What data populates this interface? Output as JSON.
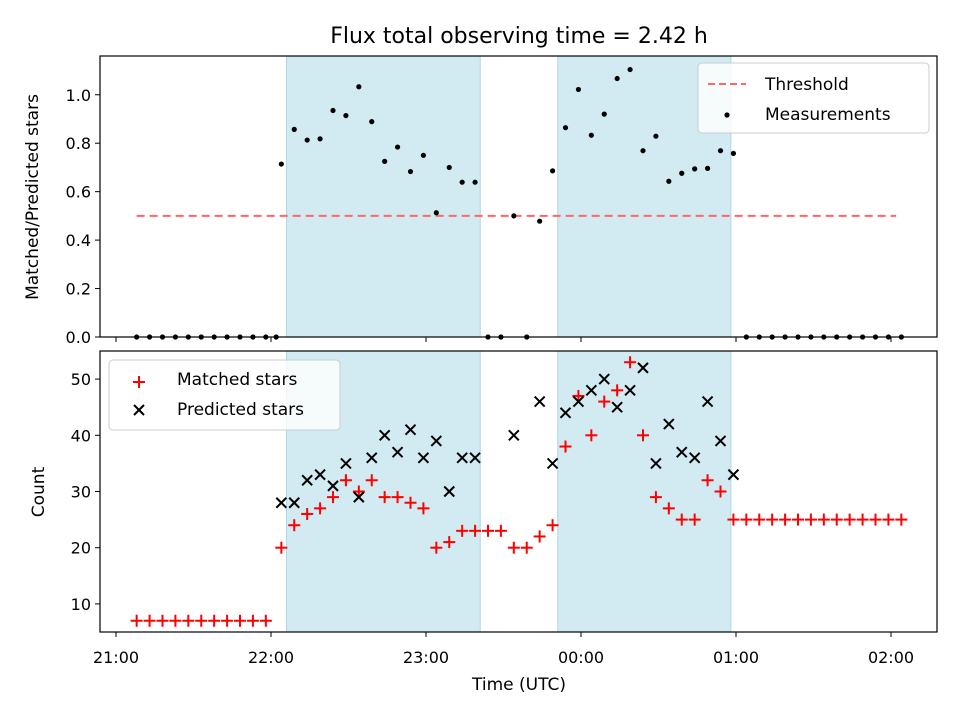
{
  "title": "Flux total observing time = 2.42 h",
  "xlabel": "Time (UTC)",
  "colors": {
    "shade": "#add8e6",
    "threshold": "#ff6666",
    "measurement": "#000000",
    "matched": "#ff0000",
    "predicted": "#000000"
  },
  "chart_data": [
    {
      "type": "scatter",
      "ylabel": "Matched/Predicted stars",
      "ylim": [
        0,
        1.16
      ],
      "yticks": [
        "0.0",
        "0.2",
        "0.4",
        "0.6",
        "0.8",
        "1.0"
      ],
      "ytick_values": [
        0,
        0.2,
        0.4,
        0.6,
        0.8,
        1.0
      ],
      "shaded_intervals": [
        [
          "22:06",
          "23:21"
        ],
        [
          "23:51",
          "00:58"
        ]
      ],
      "threshold": {
        "name": "Threshold",
        "value": 0.5,
        "x_range": [
          "21:08",
          "02:02"
        ]
      },
      "legend": {
        "position": "upper right",
        "entries": [
          "Threshold",
          "Measurements"
        ]
      },
      "series": [
        {
          "name": "Measurements",
          "marker": "dot",
          "x": [
            "21:08",
            "21:13",
            "21:18",
            "21:23",
            "21:28",
            "21:33",
            "21:38",
            "21:43",
            "21:48",
            "21:53",
            "21:58",
            "22:02",
            "22:04",
            "22:09",
            "22:14",
            "22:19",
            "22:24",
            "22:29",
            "22:34",
            "22:39",
            "22:44",
            "22:49",
            "22:54",
            "22:59",
            "23:04",
            "23:09",
            "23:14",
            "23:19",
            "23:24",
            "23:29",
            "23:34",
            "23:39",
            "23:44",
            "23:49",
            "23:54",
            "23:59",
            "24:04",
            "24:09",
            "24:14",
            "24:19",
            "24:24",
            "24:29",
            "24:34",
            "24:39",
            "24:44",
            "24:49",
            "24:54",
            "24:59",
            "25:04",
            "25:09",
            "25:14",
            "25:19",
            "25:24",
            "25:29",
            "25:34",
            "25:39",
            "25:44",
            "25:49",
            "25:54",
            "25:59",
            "26:04"
          ],
          "y": [
            0,
            0,
            0,
            0,
            0,
            0,
            0,
            0,
            0,
            0,
            0,
            0,
            0.714,
            0.857,
            0.813,
            0.818,
            0.935,
            0.914,
            1.033,
            0.889,
            0.725,
            0.784,
            0.683,
            0.75,
            0.513,
            0.7,
            0.639,
            0.639,
            0,
            0,
            0.5,
            0,
            0.478,
            0.686,
            0.864,
            1.022,
            0.833,
            0.92,
            1.067,
            1.104,
            0.769,
            0.829,
            0.643,
            0.676,
            0.694,
            0.696,
            0.769,
            0.758,
            0,
            0,
            0,
            0,
            0,
            0,
            0,
            0,
            0,
            0,
            0,
            0,
            0
          ]
        }
      ]
    },
    {
      "type": "scatter",
      "ylabel": "Count",
      "ylim": [
        5,
        55
      ],
      "yticks": [
        "10",
        "20",
        "30",
        "40",
        "50"
      ],
      "ytick_values": [
        10,
        20,
        30,
        40,
        50
      ],
      "xticks": [
        "21:00",
        "22:00",
        "23:00",
        "00:00",
        "01:00",
        "02:00"
      ],
      "shaded_intervals": [
        [
          "22:06",
          "23:21"
        ],
        [
          "23:51",
          "00:58"
        ]
      ],
      "legend": {
        "position": "upper left",
        "entries": [
          "Matched stars",
          "Predicted stars"
        ]
      },
      "series": [
        {
          "name": "Matched stars",
          "marker": "plus",
          "x": [
            "21:08",
            "21:13",
            "21:18",
            "21:23",
            "21:28",
            "21:33",
            "21:38",
            "21:43",
            "21:48",
            "21:53",
            "21:58",
            "22:04",
            "22:09",
            "22:14",
            "22:19",
            "22:24",
            "22:29",
            "22:34",
            "22:39",
            "22:44",
            "22:49",
            "22:54",
            "22:59",
            "23:04",
            "23:09",
            "23:14",
            "23:19",
            "23:24",
            "23:29",
            "23:34",
            "23:39",
            "23:44",
            "23:49",
            "23:54",
            "23:59",
            "24:04",
            "24:09",
            "24:14",
            "24:19",
            "24:24",
            "24:29",
            "24:34",
            "24:39",
            "24:44",
            "24:49",
            "24:54",
            "24:59",
            "25:04",
            "25:09",
            "25:14",
            "25:19",
            "25:24",
            "25:29",
            "25:34",
            "25:39",
            "25:44",
            "25:49",
            "25:54",
            "25:59",
            "26:04"
          ],
          "y": [
            7,
            7,
            7,
            7,
            7,
            7,
            7,
            7,
            7,
            7,
            7,
            20,
            24,
            26,
            27,
            29,
            32,
            30,
            32,
            29,
            29,
            28,
            27,
            20,
            21,
            23,
            23,
            23,
            23,
            20,
            20,
            22,
            24,
            38,
            47,
            40,
            46,
            48,
            53,
            40,
            29,
            27,
            25,
            25,
            32,
            30,
            25,
            25,
            25,
            25,
            25,
            25,
            25,
            25,
            25,
            25,
            25,
            25,
            25,
            25
          ]
        },
        {
          "name": "Predicted stars",
          "marker": "x",
          "x": [
            "22:04",
            "22:09",
            "22:14",
            "22:19",
            "22:24",
            "22:29",
            "22:34",
            "22:39",
            "22:44",
            "22:49",
            "22:54",
            "22:59",
            "23:04",
            "23:09",
            "23:14",
            "23:19",
            "23:34",
            "23:44",
            "23:49",
            "23:54",
            "23:59",
            "24:04",
            "24:09",
            "24:14",
            "24:19",
            "24:24",
            "24:29",
            "24:34",
            "24:39",
            "24:44",
            "24:49",
            "24:54",
            "24:59"
          ],
          "y": [
            28,
            28,
            32,
            33,
            31,
            35,
            29,
            36,
            40,
            37,
            41,
            36,
            39,
            30,
            36,
            36,
            40,
            46,
            35,
            44,
            46,
            48,
            50,
            45,
            48,
            52,
            35,
            42,
            37,
            36,
            46,
            39,
            33
          ]
        }
      ]
    }
  ]
}
